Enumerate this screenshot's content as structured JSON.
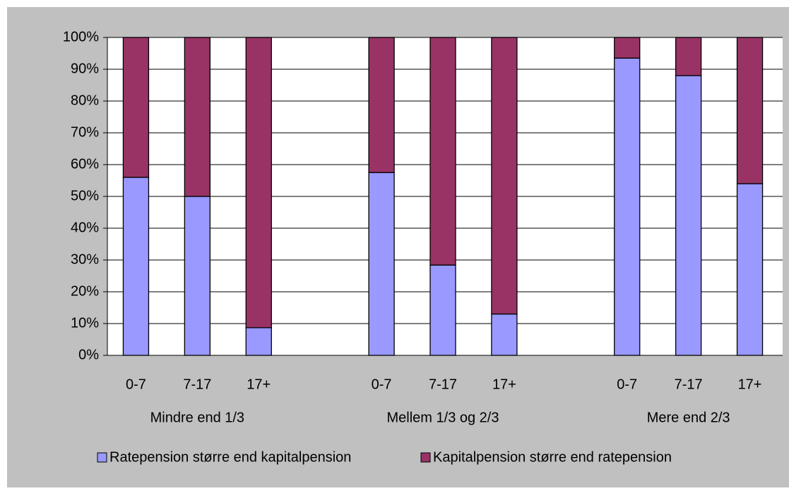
{
  "chart_data": {
    "type": "stacked_bar",
    "categories": [
      "0-7",
      "7-17",
      "17+",
      null,
      "0-7",
      "7-17",
      "17+",
      null,
      "0-7",
      "7-17",
      "17+"
    ],
    "groups": [
      "Mindre end 1/3",
      "Mellem 1/3 og 2/3",
      "Mere end 2/3"
    ],
    "series": [
      {
        "name": "Ratepension større end kapitalpension",
        "color": "#9999ff",
        "values": [
          56,
          50,
          8.7,
          null,
          57.5,
          28.4,
          13,
          null,
          93.5,
          88,
          54
        ]
      },
      {
        "name": "Kapitalpension større end ratepension",
        "color": "#993366",
        "values": [
          44,
          50,
          91.3,
          null,
          42.5,
          71.6,
          87,
          null,
          6.5,
          12,
          46
        ]
      }
    ],
    "ylim": [
      0,
      100
    ],
    "yticks": [
      {
        "value": 0,
        "label": "0%"
      },
      {
        "value": 10,
        "label": "10%"
      },
      {
        "value": 20,
        "label": "20%"
      },
      {
        "value": 30,
        "label": "30%"
      },
      {
        "value": 40,
        "label": "40%"
      },
      {
        "value": 50,
        "label": "50%"
      },
      {
        "value": 60,
        "label": "60%"
      },
      {
        "value": 70,
        "label": "70%"
      },
      {
        "value": 80,
        "label": "80%"
      },
      {
        "value": 90,
        "label": "90%"
      },
      {
        "value": 100,
        "label": "100%"
      }
    ],
    "grid": true
  }
}
